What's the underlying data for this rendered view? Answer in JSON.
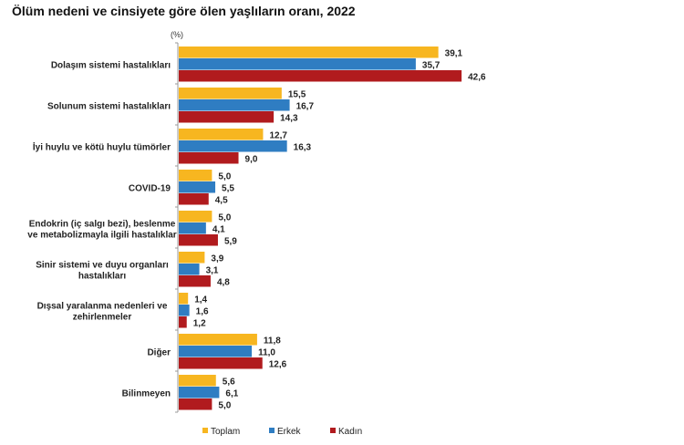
{
  "chart_data": {
    "type": "bar",
    "orientation": "horizontal",
    "title": "Ölüm nedeni ve cinsiyete göre ölen yaşlıların oranı, 2022",
    "unit_label": "(%)",
    "categories": [
      [
        "Dolaşım sistemi hastalıkları"
      ],
      [
        "Solunum sistemi hastalıkları"
      ],
      [
        "İyi huylu ve kötü huylu tümörler"
      ],
      [
        "COVID-19"
      ],
      [
        "Endokrin (iç salgı bezi), beslenme",
        "ve metabolizmayla ilgili hastalıklar"
      ],
      [
        "Sinir sistemi ve duyu organları",
        "hastalıkları"
      ],
      [
        "Dışsal yaralanma nedenleri ve",
        "zehirlenmeler"
      ],
      [
        "Diğer"
      ],
      [
        "Bilinmeyen"
      ]
    ],
    "series": [
      {
        "name": "Toplam",
        "color": "#F7B620",
        "values": [
          39.1,
          15.5,
          12.7,
          5.0,
          5.0,
          3.9,
          1.4,
          11.8,
          5.6
        ],
        "labels": [
          "39,1",
          "15,5",
          "12,7",
          "5,0",
          "5,0",
          "3,9",
          "1,4",
          "11,8",
          "5,6"
        ]
      },
      {
        "name": "Erkek",
        "color": "#2F7DC2",
        "values": [
          35.7,
          16.7,
          16.3,
          5.5,
          4.1,
          3.1,
          1.6,
          11.0,
          6.1
        ],
        "labels": [
          "35,7",
          "16,7",
          "16,3",
          "5,5",
          "4,1",
          "3,1",
          "1,6",
          "11,0",
          "6,1"
        ]
      },
      {
        "name": "Kadın",
        "color": "#B11B1E",
        "values": [
          42.6,
          14.3,
          9.0,
          4.5,
          5.9,
          4.8,
          1.2,
          12.6,
          5.0
        ],
        "labels": [
          "42,6",
          "14,3",
          "9,0",
          "4,5",
          "5,9",
          "4,8",
          "1,2",
          "12,6",
          "5,0"
        ]
      }
    ],
    "legend": "bottom",
    "grid": false
  }
}
